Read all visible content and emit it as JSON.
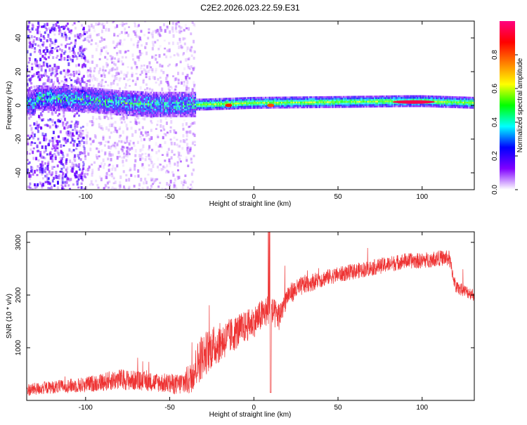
{
  "title": "C2E2.2026.023.22.59.E31",
  "colors": {
    "snr_line": "#ee3333",
    "axis": "#000000"
  },
  "chart_data": [
    {
      "type": "heatmap",
      "xlabel": "Height of straight line (km)",
      "ylabel": "Frequency (Hz)",
      "xlim": [
        -135,
        131
      ],
      "ylim": [
        -50,
        50
      ],
      "xticks": [
        -100,
        -50,
        0,
        50,
        100
      ],
      "yticks": [
        -40,
        -20,
        0,
        20,
        40
      ],
      "grid": false,
      "colorbar": {
        "label": "Normalized spectral amplitude",
        "range": [
          0,
          1
        ],
        "ticks": [
          "0.0",
          "0.2",
          "0.4",
          "0.6",
          "0.8"
        ],
        "tick_values": [
          0,
          0.2,
          0.4,
          0.6,
          0.8
        ],
        "colors": [
          "#ffffff",
          "#8000ff",
          "#0000ff",
          "#00ffff",
          "#00ff00",
          "#ffff00",
          "#ff8000",
          "#ff0000",
          "#ff0080"
        ]
      },
      "bands": [
        {
          "x": [
            -135,
            -100
          ],
          "freq_spread": 50,
          "amplitude": 0.35
        },
        {
          "x": [
            -100,
            -35
          ],
          "freq_spread": 50,
          "amplitude": 0.2
        },
        {
          "x": [
            -35,
            131
          ],
          "freq_spread": 3,
          "amplitude": 0.5
        }
      ],
      "ridge": [
        [
          -130,
          4
        ],
        [
          -100,
          3
        ],
        [
          -80,
          1
        ],
        [
          -60,
          0
        ],
        [
          -40,
          0
        ],
        [
          -30,
          0
        ],
        [
          0,
          1
        ],
        [
          50,
          1.5
        ],
        [
          90,
          2
        ],
        [
          100,
          2
        ],
        [
          131,
          1
        ]
      ],
      "hotspots": [
        {
          "x": -15,
          "y": 0,
          "amplitude": 0.85
        },
        {
          "x": 10,
          "y": 0,
          "amplitude": 0.8
        },
        {
          "x": 95,
          "y": 2,
          "amplitude": 0.95
        }
      ]
    },
    {
      "type": "line",
      "xlabel": "Height of straight line (km)",
      "ylabel": "SNR (10 * v/v)",
      "xlim": [
        -135,
        131
      ],
      "ylim": [
        0,
        3200
      ],
      "xticks": [
        -100,
        -50,
        0,
        50,
        100
      ],
      "yticks": [
        1000,
        2000,
        3000
      ],
      "grid": false,
      "series": [
        {
          "color": "#ee3333",
          "x": [
            -135,
            -120,
            -100,
            -80,
            -60,
            -45,
            -38,
            -32,
            -25,
            -15,
            -5,
            0,
            8,
            15,
            20,
            30,
            45,
            60,
            75,
            90,
            100,
            110,
            116,
            120,
            131
          ],
          "y": [
            200,
            250,
            300,
            400,
            350,
            300,
            400,
            800,
            1000,
            1200,
            1400,
            1500,
            1700,
            1600,
            2000,
            2200,
            2350,
            2450,
            2550,
            2650,
            2650,
            2700,
            2700,
            2150,
            2000
          ],
          "noise": [
            120,
            120,
            150,
            200,
            180,
            200,
            300,
            450,
            400,
            350,
            300,
            300,
            300,
            280,
            200,
            180,
            150,
            150,
            150,
            150,
            150,
            150,
            150,
            120,
            120
          ]
        }
      ]
    }
  ]
}
